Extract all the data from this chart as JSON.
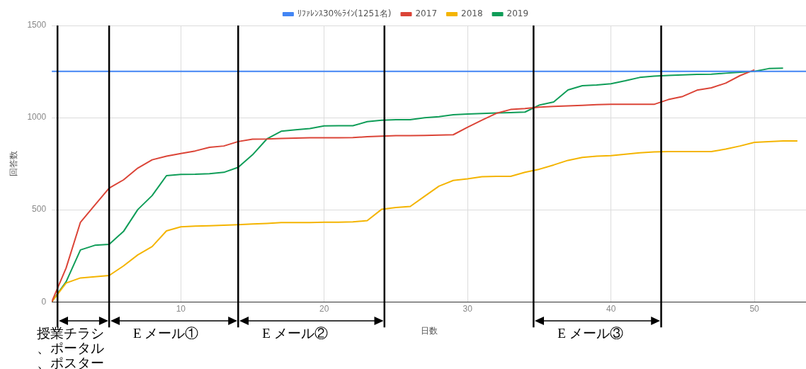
{
  "chart_data": {
    "type": "line",
    "xlabel": "日数",
    "ylabel": "回答数",
    "legend": "top",
    "grid": true,
    "marker": "none",
    "line_style": "solid",
    "x": [
      1,
      2,
      3,
      4,
      5,
      6,
      7,
      8,
      9,
      10,
      11,
      12,
      13,
      14,
      15,
      16,
      17,
      18,
      19,
      20,
      21,
      22,
      23,
      24,
      25,
      26,
      27,
      28,
      29,
      30,
      31,
      32,
      33,
      34,
      35,
      36,
      37,
      38,
      39,
      40,
      41,
      42,
      43,
      44,
      45,
      46,
      47,
      48,
      49,
      50,
      51,
      52,
      53
    ],
    "xlim": [
      1,
      53.6
    ],
    "xticks": [
      10,
      20,
      30,
      40,
      50
    ],
    "ylim": [
      0,
      1500
    ],
    "yticks": [
      0,
      500,
      1000,
      1500
    ],
    "series": [
      {
        "name": "ﾘﾌｧﾚﾝｽ30%ﾗｲﾝ(1251名)",
        "color": "#4285f4",
        "x": [
          1,
          53.6
        ],
        "values": [
          1251,
          1251
        ]
      },
      {
        "name": "2017",
        "color": "#db4437",
        "x": [
          1,
          2,
          3,
          4,
          5,
          6,
          7,
          8,
          9,
          10,
          11,
          12,
          13,
          14,
          15,
          16,
          17,
          18,
          19,
          20,
          21,
          22,
          23,
          24,
          25,
          26,
          27,
          28,
          29,
          30,
          31,
          32,
          33,
          34,
          35,
          36,
          37,
          38,
          39,
          40,
          41,
          42,
          43,
          44,
          45,
          46,
          47,
          48,
          49,
          50
        ],
        "values": [
          0,
          184,
          432,
          525,
          617,
          662,
          726,
          771,
          791,
          805,
          819,
          839,
          846,
          870,
          883,
          884,
          887,
          889,
          891,
          891,
          891,
          892,
          896,
          899,
          902,
          902,
          903,
          905,
          907,
          948,
          986,
          1023,
          1044,
          1049,
          1057,
          1061,
          1064,
          1067,
          1070,
          1072,
          1072,
          1072,
          1072,
          1098,
          1115,
          1149,
          1162,
          1187,
          1228,
          1259
        ]
      },
      {
        "name": "2018",
        "color": "#f4b400",
        "values": [
          0,
          102,
          130,
          136,
          143,
          195,
          255,
          300,
          385,
          407,
          411,
          413,
          416,
          419,
          423,
          426,
          430,
          430,
          430,
          432,
          432,
          434,
          441,
          502,
          512,
          518,
          573,
          628,
          659,
          668,
          679,
          681,
          681,
          703,
          720,
          743,
          768,
          784,
          791,
          794,
          801,
          809,
          814,
          816,
          816,
          816,
          816,
          829,
          846,
          866,
          870,
          873,
          873
        ]
      },
      {
        "name": "2019",
        "color": "#0f9d58",
        "x": [
          1,
          2,
          3,
          4,
          5,
          6,
          7,
          8,
          9,
          10,
          11,
          12,
          13,
          14,
          15,
          16,
          17,
          18,
          19,
          20,
          21,
          22,
          23,
          24,
          25,
          26,
          27,
          28,
          29,
          30,
          31,
          32,
          33,
          34,
          35,
          36,
          37,
          38,
          39,
          40,
          41,
          42,
          43,
          44,
          45,
          46,
          47,
          48,
          49,
          50,
          51,
          52
        ],
        "values": [
          0,
          109,
          282,
          307,
          312,
          382,
          501,
          577,
          685,
          692,
          693,
          696,
          703,
          730,
          798,
          884,
          926,
          934,
          941,
          955,
          956,
          956,
          978,
          986,
          989,
          989,
          999,
          1005,
          1016,
          1019,
          1022,
          1025,
          1027,
          1030,
          1068,
          1085,
          1150,
          1173,
          1177,
          1184,
          1200,
          1218,
          1225,
          1229,
          1232,
          1235,
          1236,
          1241,
          1246,
          1251,
          1266,
          1268
        ]
      }
    ],
    "ref_lines": [
      {
        "axis": "x",
        "value": 1.4,
        "color": "#000000",
        "label": "授業チラシ、ポータル、ポスター"
      },
      {
        "axis": "x",
        "value": 5,
        "color": "#000000",
        "label": "E メール①"
      },
      {
        "axis": "x",
        "value": 14,
        "color": "#000000",
        "label": "E メール②"
      },
      {
        "axis": "x",
        "value": 24.2,
        "color": "#000000"
      },
      {
        "axis": "x",
        "value": 34.6,
        "color": "#000000",
        "label": "E メール③"
      },
      {
        "axis": "x",
        "value": 43.5,
        "color": "#000000"
      }
    ]
  }
}
